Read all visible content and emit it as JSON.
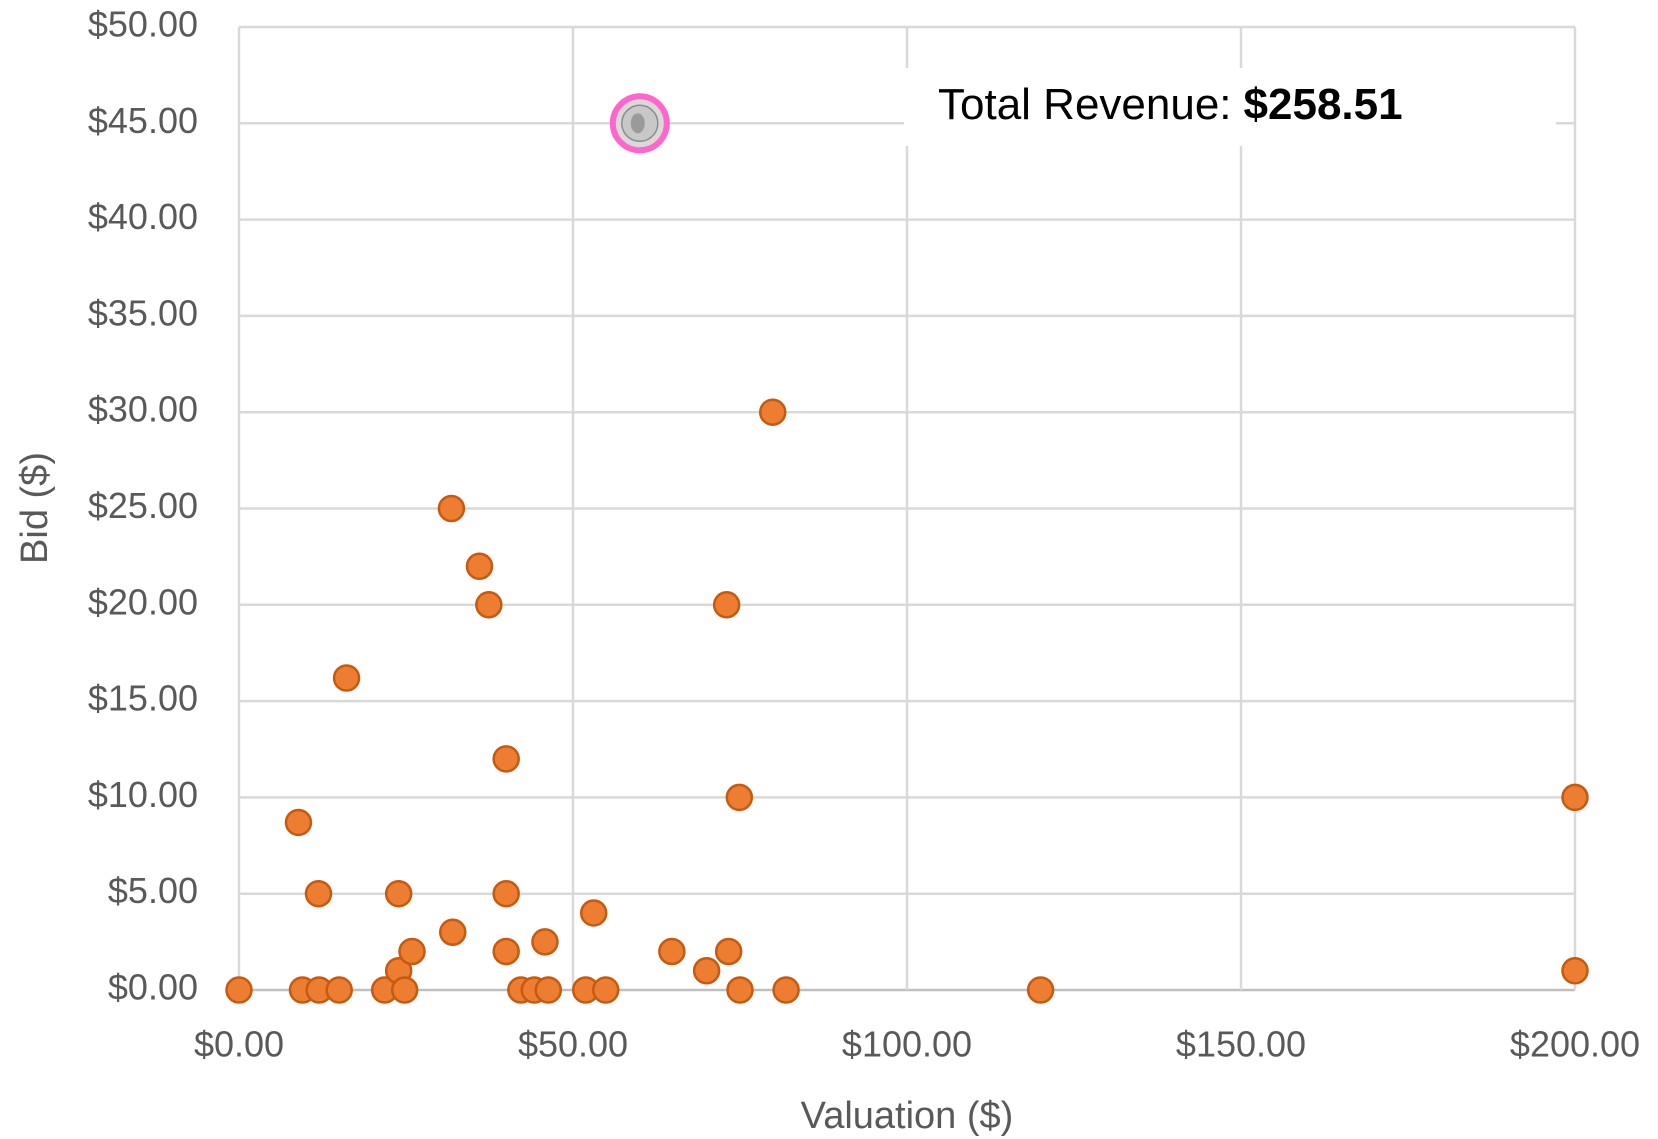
{
  "chart_data": {
    "type": "scatter",
    "x_label": "Valuation ($)",
    "y_label": "Bid ($)",
    "annotation": {
      "text": "Total Revenue:",
      "value": "$258.51"
    },
    "xlim": [
      0,
      200
    ],
    "ylim": [
      0,
      50
    ],
    "xticks": [
      {
        "value": 0,
        "label": "$0.00"
      },
      {
        "value": 50,
        "label": "$50.00"
      },
      {
        "value": 100,
        "label": "$100.00"
      },
      {
        "value": 150,
        "label": "$150.00"
      },
      {
        "value": 200,
        "label": "$200.00"
      }
    ],
    "yticks": [
      {
        "value": 0,
        "label": "$0.00"
      },
      {
        "value": 5,
        "label": "$5.00"
      },
      {
        "value": 10,
        "label": "$10.00"
      },
      {
        "value": 15,
        "label": "$15.00"
      },
      {
        "value": 20,
        "label": "$20.00"
      },
      {
        "value": 25,
        "label": "$25.00"
      },
      {
        "value": 30,
        "label": "$30.00"
      },
      {
        "value": 35,
        "label": "$35.00"
      },
      {
        "value": 40,
        "label": "$40.00"
      },
      {
        "value": 45,
        "label": "$45.00"
      },
      {
        "value": 50,
        "label": "$50.00"
      }
    ],
    "grid": true,
    "series": [
      {
        "color": "#ed7d31",
        "x": [
          0,
          8.9,
          9.5,
          11.9,
          12,
          15,
          16.1,
          21.8,
          23.9,
          23.9,
          24.8,
          25.9,
          32,
          31.8,
          36,
          37.4,
          40,
          40,
          40,
          42.2,
          44.2,
          46.3,
          45.8,
          51.9,
          53.1,
          54.9,
          64.8,
          70,
          73,
          73.3,
          74.9,
          75,
          79.9,
          81.9,
          120,
          200,
          200
        ],
        "values": [
          0,
          8.7,
          0,
          5,
          0,
          0,
          16.2,
          0,
          1,
          5,
          0,
          2,
          3,
          25,
          22,
          20,
          12,
          5,
          2,
          0,
          0,
          0,
          2.5,
          0,
          4,
          0,
          2,
          1,
          20,
          2,
          10,
          0,
          30,
          0,
          0,
          10,
          1
        ]
      },
      {
        "color": "#ff66cc",
        "x": [
          60
        ],
        "values": [
          45
        ]
      }
    ]
  }
}
